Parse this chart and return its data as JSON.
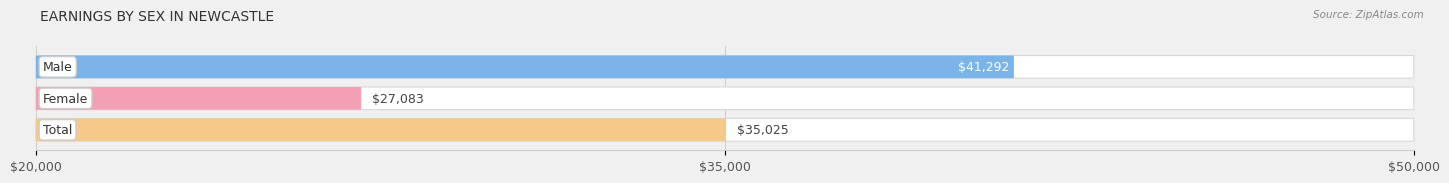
{
  "title": "EARNINGS BY SEX IN NEWCASTLE",
  "source": "Source: ZipAtlas.com",
  "categories": [
    "Male",
    "Female",
    "Total"
  ],
  "values": [
    41292,
    27083,
    35025
  ],
  "bar_colors": [
    "#7ab4e8",
    "#f4a0b4",
    "#f5c98a"
  ],
  "bar_labels": [
    "$41,292",
    "$27,083",
    "$35,025"
  ],
  "label_inside": [
    true,
    false,
    false
  ],
  "xlim": [
    20000,
    50000
  ],
  "xticks": [
    20000,
    35000,
    50000
  ],
  "xtick_labels": [
    "$20,000",
    "$35,000",
    "$50,000"
  ],
  "background_color": "#f0f0f0",
  "bar_bg_color": "#ffffff",
  "bar_bg_border": "#d8d8d8",
  "title_fontsize": 10,
  "label_fontsize": 9,
  "tick_fontsize": 9,
  "bar_height": 0.72
}
